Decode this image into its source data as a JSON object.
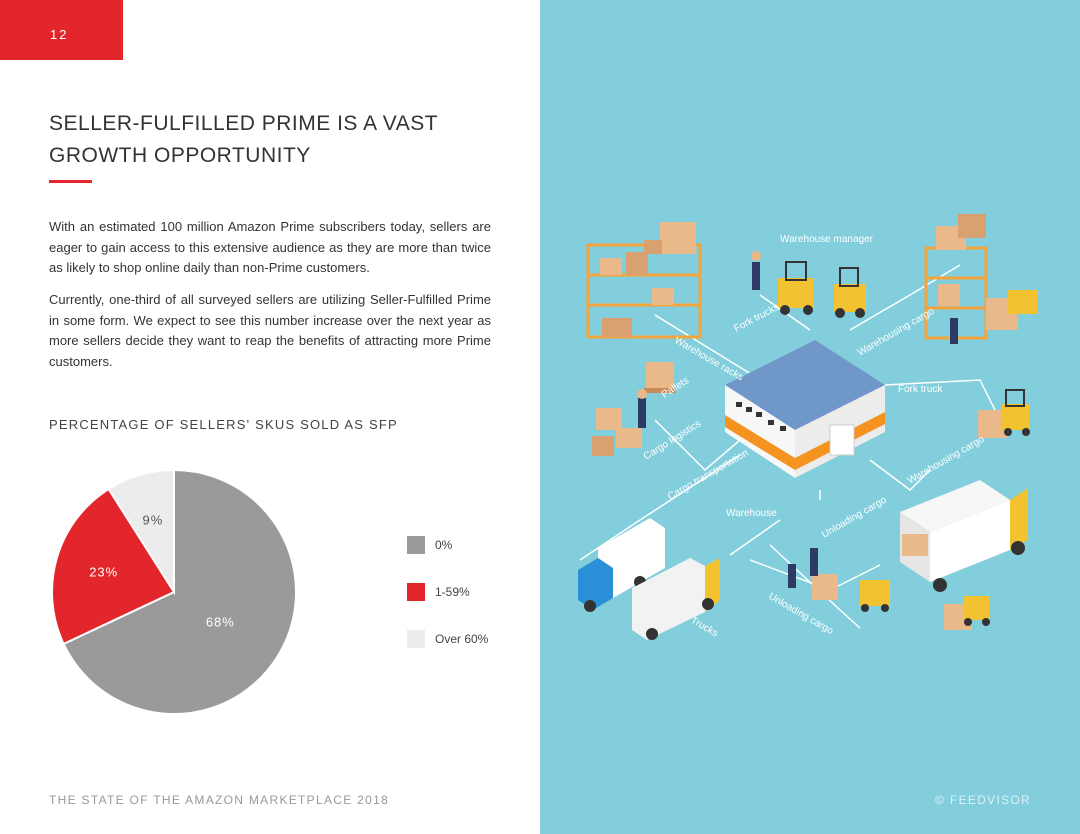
{
  "page": {
    "number": "12",
    "title_line1": "SELLER-FULFILLED PRIME IS A VAST",
    "title_line2": "GROWTH OPPORTUNITY",
    "paragraph1": "With an estimated 100 million Amazon Prime subscribers today, sellers are eager to gain access to this extensive audience as they are more than twice as likely to shop online daily than non-Prime customers.",
    "paragraph2": "Currently, one-third of all surveyed sellers are utilizing Seller-Fulfilled Prime in some form. We expect to see this number increase over the next year as more sellers decide they want to reap the benefits of attracting more Prime customers.",
    "footer_left": "THE STATE OF THE AMAZON MARKETPLACE 2018",
    "footer_right": "© FEEDVISOR",
    "accent_color": "#e2262b",
    "panel_color": "#83cedd"
  },
  "chart_data": {
    "type": "pie",
    "title": "PERCENTAGE OF SELLERS' SKUS SOLD AS SFP",
    "categories": [
      "0%",
      "1-59%",
      "Over 60%"
    ],
    "values": [
      68,
      23,
      9
    ],
    "labels": [
      "68%",
      "23%",
      "9%"
    ],
    "colors": [
      "#9b9a9a",
      "#e2262b",
      "#ececec"
    ],
    "legend_position": "right"
  },
  "illustration": {
    "labels": {
      "warehouse_manager": "Warehouse manager",
      "fork_truck": "Fork truck",
      "warehouse": "Warehouse",
      "fork_trucks": "Fork trucks",
      "warehouse_racks": "Warehouse racks",
      "warehousing_cargo_top": "Warehousing cargo",
      "pallets": "Pallets",
      "cargo_logistics": "Cargo logistics",
      "warehousing_cargo_right": "Warehousing cargo",
      "cargo_transportation": "Cargo transportation",
      "unloading_cargo_1": "Unloading cargo",
      "unloading_cargo_2": "Unloading cargo",
      "trucks": "Trucks"
    }
  }
}
